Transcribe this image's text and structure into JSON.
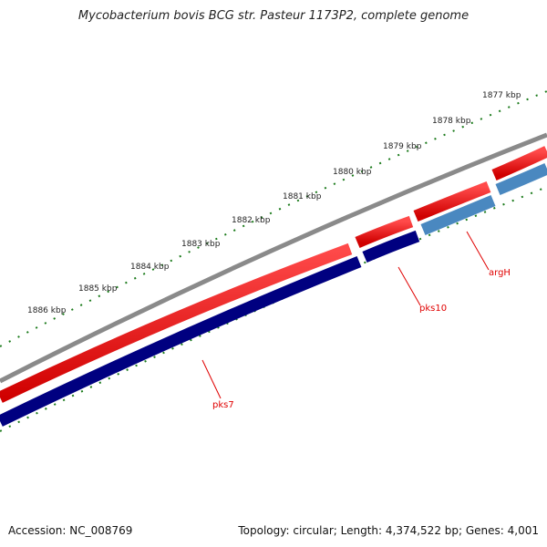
{
  "title": "Mycobacterium bovis BCG str. Pasteur 1173P2, complete genome",
  "footer": {
    "accession": "Accession: NC_008769",
    "topology": "Topology: circular; Length: 4,374,522 bp; Genes: 4,001"
  },
  "ticks": [
    "1877 kbp",
    "1878 kbp",
    "1879 kbp",
    "1880 kbp",
    "1881 kbp",
    "1882 kbp",
    "1883 kbp",
    "1884 kbp",
    "1885 kbp",
    "1886 kbp"
  ],
  "genes": [
    {
      "name": "pks7",
      "color": "#e00000"
    },
    {
      "name": "pks10",
      "color": "#e00000"
    },
    {
      "name": "argH",
      "color": "#e00000"
    }
  ],
  "colors": {
    "backbone": "#808080",
    "cds_forward": "#e60000",
    "cds_reverse_dark": "#000080",
    "cds_reverse_light": "#4a88c0",
    "tick": "#1a7a1a"
  }
}
